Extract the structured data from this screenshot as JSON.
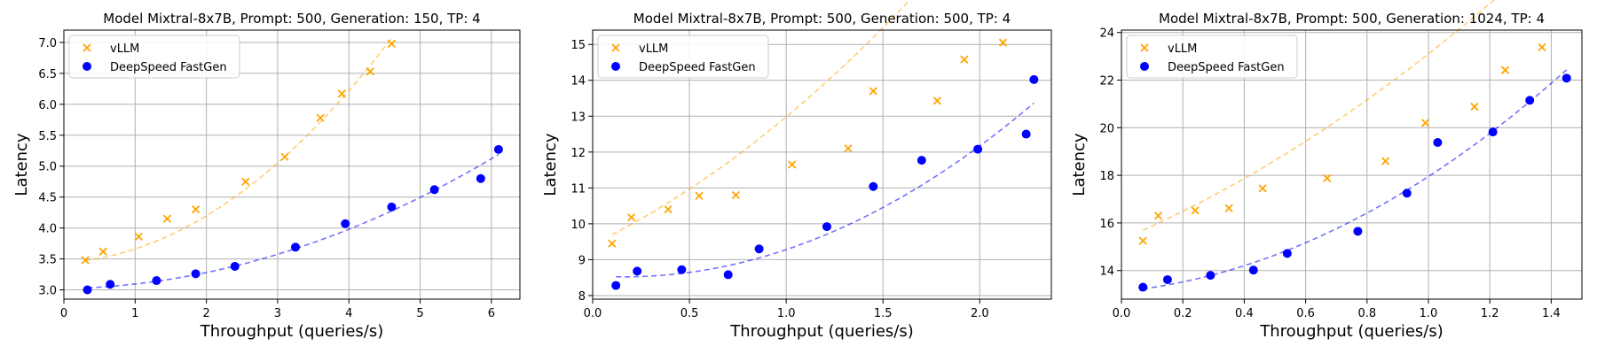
{
  "colors": {
    "vllm": "#ffa500",
    "fastgen": "#0000ff",
    "grid": "#b0b0b0",
    "axis": "#000000"
  },
  "chart_data": [
    {
      "type": "scatter",
      "title": "Model Mixtral-8x7B, Prompt: 500, Generation: 150, TP: 4",
      "xlabel": "Throughput (queries/s)",
      "ylabel": "Latency",
      "xlim": [
        0,
        6.4
      ],
      "ylim": [
        2.85,
        7.2
      ],
      "xticks": [
        0,
        1,
        2,
        3,
        4,
        5,
        6
      ],
      "yticks": [
        3.0,
        3.5,
        4.0,
        4.5,
        5.0,
        5.5,
        6.0,
        6.5,
        7.0
      ],
      "xtick_labels": [
        "0",
        "1",
        "2",
        "3",
        "4",
        "5",
        "6"
      ],
      "ytick_labels": [
        "3.0",
        "3.5",
        "4.0",
        "4.5",
        "5.0",
        "5.5",
        "6.0",
        "6.5",
        "7.0"
      ],
      "grid": true,
      "legend_position": "top-left",
      "series": [
        {
          "name": "vLLM",
          "marker": "x",
          "color_key": "vllm",
          "x": [
            0.3,
            0.55,
            1.05,
            1.45,
            1.85,
            2.55,
            3.1,
            3.6,
            3.9,
            4.3,
            4.6
          ],
          "y": [
            3.48,
            3.62,
            3.86,
            4.15,
            4.3,
            4.75,
            5.15,
            5.78,
            6.17,
            6.53,
            6.98
          ],
          "trend_x": [
            0.3,
            4.6
          ],
          "trend_coef": [
            3.44,
            0.063,
            0.158
          ]
        },
        {
          "name": "DeepSpeed FastGen",
          "marker": "o",
          "color_key": "fastgen",
          "x": [
            0.33,
            0.65,
            1.3,
            1.85,
            2.4,
            3.25,
            3.95,
            4.6,
            5.2,
            5.85,
            6.1
          ],
          "y": [
            3.0,
            3.09,
            3.15,
            3.26,
            3.38,
            3.69,
            4.07,
            4.34,
            4.62,
            4.8,
            5.27
          ],
          "trend_x": [
            0.33,
            6.1
          ],
          "trend_coef": [
            3.02,
            0.02,
            0.055
          ]
        }
      ]
    },
    {
      "type": "scatter",
      "title": "Model Mixtral-8x7B, Prompt: 500, Generation: 500, TP: 4",
      "xlabel": "Throughput (queries/s)",
      "ylabel": "Latency",
      "xlim": [
        0,
        2.37
      ],
      "ylim": [
        7.9,
        15.4
      ],
      "xticks": [
        0.0,
        0.5,
        1.0,
        1.5,
        2.0
      ],
      "yticks": [
        8,
        9,
        10,
        11,
        12,
        13,
        14,
        15
      ],
      "xtick_labels": [
        "0.0",
        "0.5",
        "1.0",
        "1.5",
        "2.0"
      ],
      "ytick_labels": [
        "8",
        "9",
        "10",
        "11",
        "12",
        "13",
        "14",
        "15"
      ],
      "grid": true,
      "legend_position": "top-left",
      "series": [
        {
          "name": "vLLM",
          "marker": "x",
          "color_key": "vllm",
          "x": [
            0.1,
            0.2,
            0.39,
            0.55,
            0.74,
            1.03,
            1.32,
            1.45,
            1.78,
            1.92,
            2.12
          ],
          "y": [
            9.45,
            10.18,
            10.4,
            10.78,
            10.8,
            11.65,
            12.1,
            13.7,
            13.43,
            14.58,
            15.05
          ],
          "trend_x": [
            0.1,
            2.12
          ],
          "trend_coef": [
            9.43,
            2.6,
            0.95
          ]
        },
        {
          "name": "DeepSpeed FastGen",
          "marker": "o",
          "color_key": "fastgen",
          "x": [
            0.12,
            0.23,
            0.46,
            0.7,
            0.86,
            1.21,
            1.45,
            1.7,
            1.99,
            2.24,
            2.28
          ],
          "y": [
            8.28,
            8.68,
            8.72,
            8.58,
            9.3,
            9.92,
            11.04,
            11.77,
            12.08,
            12.5,
            14.02
          ],
          "trend_x": [
            0.12,
            2.28
          ],
          "trend_coef": [
            8.55,
            -0.35,
            1.08
          ]
        }
      ]
    },
    {
      "type": "scatter",
      "title": "Model Mixtral-8x7B, Prompt: 500, Generation: 1024, TP: 4",
      "xlabel": "Throughput (queries/s)",
      "ylabel": "Latency",
      "xlim": [
        0,
        1.5
      ],
      "ylim": [
        12.8,
        24.1
      ],
      "xticks": [
        0.0,
        0.2,
        0.4,
        0.6,
        0.8,
        1.0,
        1.2,
        1.4
      ],
      "yticks": [
        14,
        16,
        18,
        20,
        22,
        24
      ],
      "xtick_labels": [
        "0.0",
        "0.2",
        "0.4",
        "0.6",
        "0.8",
        "1.0",
        "1.2",
        "1.4"
      ],
      "ytick_labels": [
        "14",
        "16",
        "18",
        "20",
        "22",
        "24"
      ],
      "grid": true,
      "legend_position": "top-left",
      "series": [
        {
          "name": "vLLM",
          "marker": "x",
          "color_key": "vllm",
          "x": [
            0.07,
            0.12,
            0.24,
            0.35,
            0.46,
            0.67,
            0.86,
            0.99,
            1.15,
            1.25,
            1.37
          ],
          "y": [
            15.25,
            16.3,
            16.52,
            16.62,
            17.45,
            17.88,
            18.6,
            20.2,
            20.88,
            22.42,
            23.38
          ],
          "trend_x": [
            0.07,
            1.37
          ],
          "trend_coef": [
            15.3,
            5.5,
            2.3
          ]
        },
        {
          "name": "DeepSpeed FastGen",
          "marker": "o",
          "color_key": "fastgen",
          "x": [
            0.07,
            0.15,
            0.29,
            0.43,
            0.54,
            0.77,
            0.93,
            1.03,
            1.21,
            1.33,
            1.45
          ],
          "y": [
            13.3,
            13.62,
            13.8,
            14.02,
            14.72,
            15.65,
            17.25,
            19.38,
            19.82,
            21.15,
            22.08
          ]
        }
      ]
    }
  ]
}
